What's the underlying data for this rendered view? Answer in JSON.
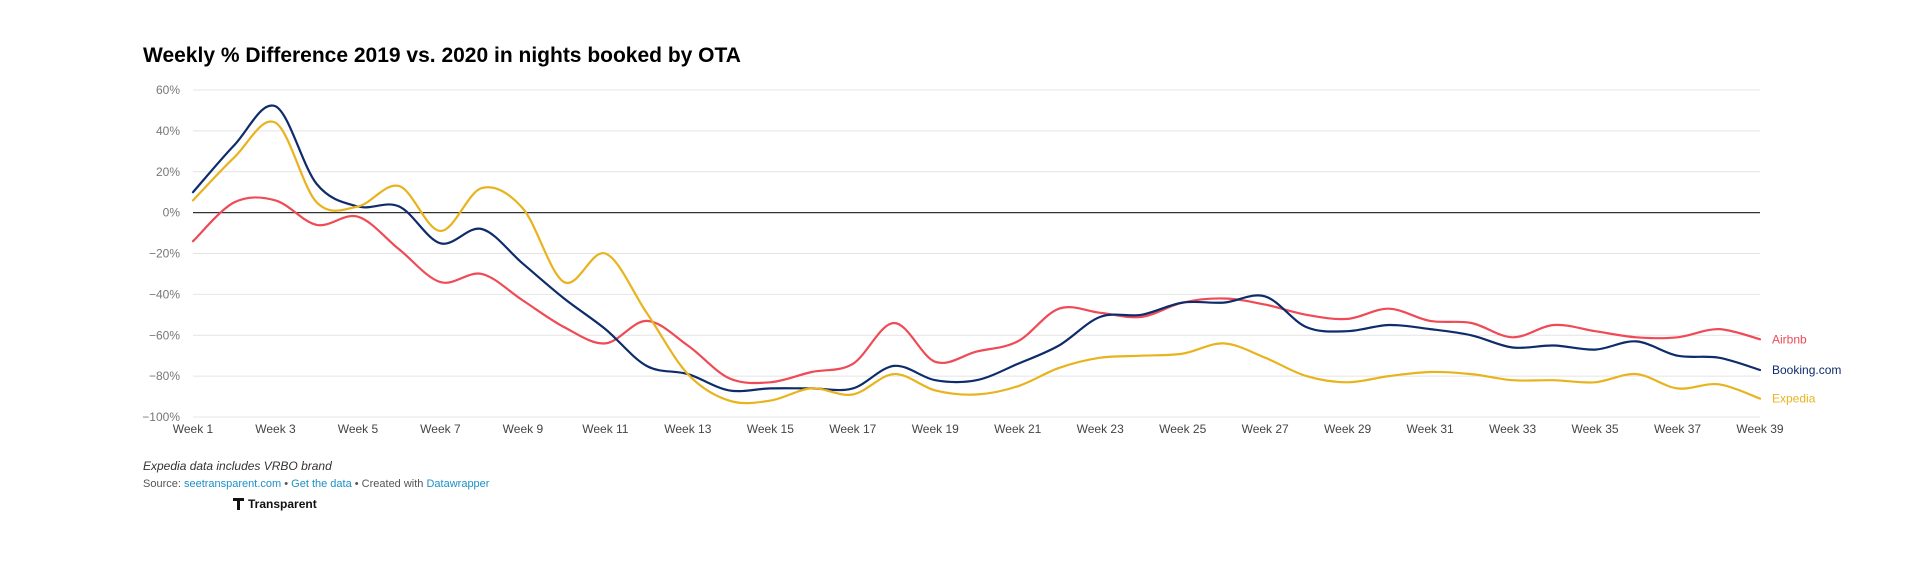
{
  "title": "Weekly % Difference 2019 vs. 2020 in nights booked by OTA",
  "note": "Expedia data includes VRBO brand",
  "source": {
    "prefix": "Source: ",
    "source_link": "seetransparent.com",
    "sep1": " • ",
    "data_link": "Get the data",
    "sep2": " • Created with ",
    "tool_link": "Datawrapper"
  },
  "logo": {
    "text": "Transparent",
    "icon": "transparent-logo-icon"
  },
  "colors": {
    "Airbnb": "#ef4a55",
    "Booking.com": "#0e2c6b",
    "Expedia": "#e9b31e",
    "link": "#1c8fc7"
  },
  "chart_data": {
    "type": "line",
    "title": "Weekly % Difference 2019 vs. 2020 in nights booked by OTA",
    "xlabel": "",
    "ylabel": "",
    "ylim": [
      -100,
      60
    ],
    "yticks": [
      60,
      40,
      20,
      0,
      -20,
      -40,
      -60,
      -80,
      -100
    ],
    "ytick_labels": [
      "60%",
      "40%",
      "20%",
      "0%",
      "−20%",
      "−40%",
      "−60%",
      "−80%",
      "−100%"
    ],
    "grid": true,
    "x": [
      "Week 1",
      "Week 2",
      "Week 3",
      "Week 4",
      "Week 5",
      "Week 6",
      "Week 7",
      "Week 8",
      "Week 9",
      "Week 10",
      "Week 11",
      "Week 12",
      "Week 13",
      "Week 14",
      "Week 15",
      "Week 16",
      "Week 17",
      "Week 18",
      "Week 19",
      "Week 20",
      "Week 21",
      "Week 22",
      "Week 23",
      "Week 24",
      "Week 25",
      "Week 26",
      "Week 27",
      "Week 28",
      "Week 29",
      "Week 30",
      "Week 31",
      "Week 32",
      "Week 33",
      "Week 34",
      "Week 35",
      "Week 36",
      "Week 37",
      "Week 38",
      "Week 39"
    ],
    "xtick_labels": [
      "Week 1",
      "Week 3",
      "Week 5",
      "Week 7",
      "Week 9",
      "Week 11",
      "Week 13",
      "Week 15",
      "Week 17",
      "Week 19",
      "Week 21",
      "Week 23",
      "Week 25",
      "Week 27",
      "Week 29",
      "Week 31",
      "Week 33",
      "Week 35",
      "Week 37",
      "Week 39"
    ],
    "series": [
      {
        "name": "Airbnb",
        "color": "#ef4a55",
        "values": [
          -14,
          5,
          6,
          -6,
          -2,
          -18,
          -34,
          -30,
          -43,
          -56,
          -64,
          -53,
          -65,
          -81,
          -83,
          -78,
          -74,
          -54,
          -73,
          -68,
          -63,
          -47,
          -49,
          -51,
          -44,
          -42,
          -45,
          -50,
          -52,
          -47,
          -53,
          -54,
          -61,
          -55,
          -58,
          -61,
          -61,
          -57,
          -62
        ]
      },
      {
        "name": "Booking.com",
        "color": "#0e2c6b",
        "values": [
          10,
          33,
          52,
          14,
          3,
          3,
          -15,
          -8,
          -25,
          -42,
          -57,
          -75,
          -79,
          -87,
          -86,
          -86,
          -86,
          -75,
          -82,
          -82,
          -74,
          -65,
          -51,
          -50,
          -44,
          -44,
          -41,
          -56,
          -58,
          -55,
          -57,
          -60,
          -66,
          -65,
          -67,
          -63,
          -70,
          -71,
          -77
        ]
      },
      {
        "name": "Expedia",
        "color": "#e9b31e",
        "values": [
          6,
          27,
          44,
          5,
          3,
          13,
          -9,
          12,
          2,
          -34,
          -20,
          -49,
          -79,
          -92,
          -92,
          -86,
          -89,
          -79,
          -87,
          -89,
          -85,
          -76,
          -71,
          -70,
          -69,
          -64,
          -71,
          -80,
          -83,
          -80,
          -78,
          -79,
          -82,
          -82,
          -83,
          -79,
          -86,
          -84,
          -91
        ]
      }
    ]
  }
}
